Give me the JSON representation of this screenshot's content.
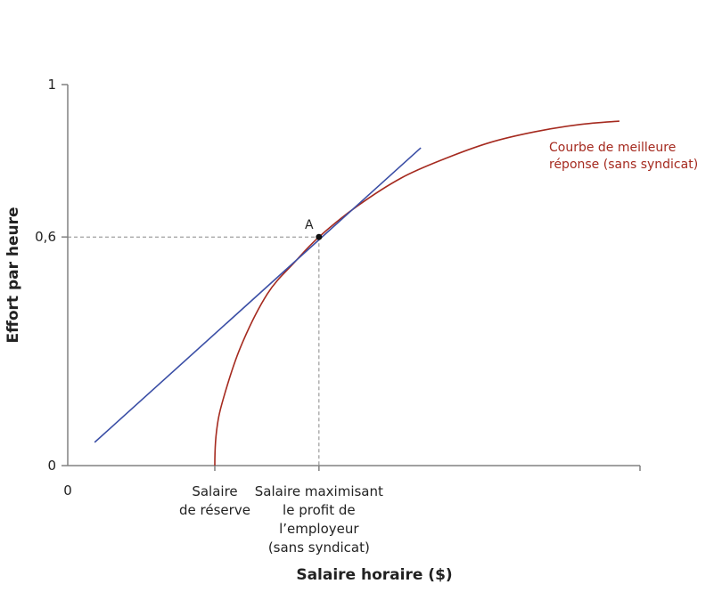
{
  "chart_data": {
    "type": "line",
    "title": "",
    "xlabel": "Salaire horaire ($)",
    "ylabel": "Effort par heure",
    "xlim": [
      0,
      100
    ],
    "ylim": [
      0,
      1
    ],
    "y_ticks": [
      {
        "value": 0,
        "label": "0"
      },
      {
        "value": 0.6,
        "label": "0,6"
      },
      {
        "value": 1,
        "label": "1"
      }
    ],
    "x_origin_label": "0",
    "x_ticks": [
      {
        "value": 25.7,
        "label_lines": [
          "Salaire",
          "de réserve"
        ]
      },
      {
        "value": 43.9,
        "label_lines": [
          "Salaire maximisant",
          "le profit de",
          "l’employeur",
          "(sans syndicat)"
        ]
      }
    ],
    "grid": false,
    "series": [
      {
        "name": "Courbe de meilleure réponse (sans syndicat)",
        "label_lines": [
          "Courbe de meilleure",
          "réponse (sans syndicat)"
        ],
        "color": "#a52a1f",
        "x": [
          25.7,
          26.0,
          27.1,
          30.2,
          34.9,
          39.6,
          43.9,
          50.5,
          58.3,
          66.0,
          73.8,
          81.6,
          89.4,
          96.4
        ],
        "y": [
          0,
          0.09,
          0.171,
          0.311,
          0.451,
          0.533,
          0.6,
          0.68,
          0.755,
          0.806,
          0.848,
          0.876,
          0.895,
          0.904
        ]
      },
      {
        "color": "#3b4fa6",
        "x": [
          4.7,
          61.7
        ],
        "y": [
          0.061,
          0.834
        ]
      }
    ],
    "points": [
      {
        "label": "A",
        "x": 43.9,
        "y": 0.6
      }
    ],
    "colors": {
      "axis": "#808080",
      "text": "#222222",
      "guide": "#888888"
    }
  }
}
